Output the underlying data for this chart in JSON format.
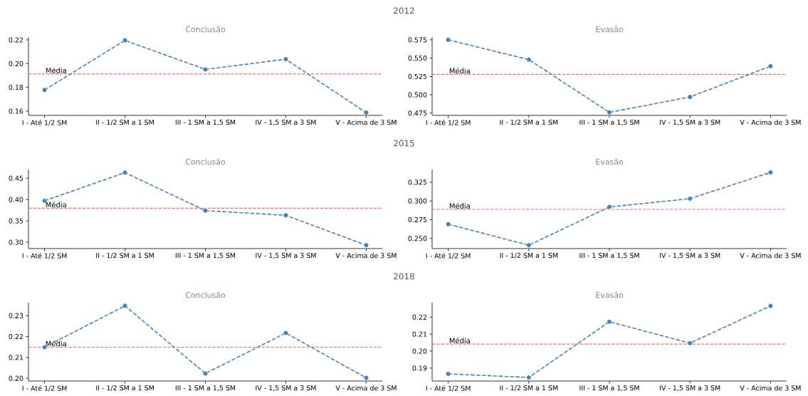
{
  "chart_data": [
    {
      "type": "line",
      "title": "2012",
      "subtitle": "Conclusão",
      "categories": [
        "I - Até 1/2 SM",
        "II - 1/2 SM a 1 SM",
        "III - 1 SM a 1,5 SM",
        "IV - 1,5 SM a 3 SM",
        "V - Acima de 3 SM"
      ],
      "series": [
        {
          "color": "#4682b4",
          "values": [
            0.1778,
            0.2196,
            0.1951,
            0.2037,
            0.1587
          ]
        }
      ],
      "ylim": [
        0.1564,
        0.2224
      ],
      "yticks": [
        {
          "value": 0.16,
          "label": "0.16"
        },
        {
          "value": 0.18,
          "label": "0.18"
        },
        {
          "value": 0.2,
          "label": "0.20"
        },
        {
          "value": 0.22,
          "label": "0.22"
        }
      ],
      "ref_lines": [
        {
          "axis": "y",
          "value": 0.1913,
          "label": "Média",
          "color": "#ff6666",
          "line_style": "dashed"
        }
      ],
      "marker": "circle",
      "line_style": "dashed"
    },
    {
      "type": "line",
      "subtitle": "Evasão",
      "categories": [
        "I - Até 1/2 SM",
        "II - 1/2 SM a 1 SM",
        "III - 1 SM a 1,5 SM",
        "IV - 1,5 SM a 3 SM",
        "V - Acima de 3 SM"
      ],
      "series": [
        {
          "color": "#4682b4",
          "values": [
            0.575,
            0.548,
            0.476,
            0.497,
            0.539
          ]
        }
      ],
      "ylim": [
        0.4719,
        0.5788
      ],
      "yticks": [
        {
          "value": 0.475,
          "label": "0.475"
        },
        {
          "value": 0.5,
          "label": "0.500"
        },
        {
          "value": 0.525,
          "label": "0.525"
        },
        {
          "value": 0.55,
          "label": "0.550"
        },
        {
          "value": 0.575,
          "label": "0.575"
        }
      ],
      "ref_lines": [
        {
          "axis": "y",
          "value": 0.5278,
          "label": "Média",
          "color": "#ff6666",
          "line_style": "dashed"
        }
      ],
      "marker": "circle",
      "line_style": "dashed"
    },
    {
      "type": "line",
      "title": "2015",
      "subtitle": "Conclusão",
      "categories": [
        "I - Até 1/2 SM",
        "II - 1/2 SM a 1 SM",
        "III - 1 SM a 1,5 SM",
        "IV - 1,5 SM a 3 SM",
        "V - Acima de 3 SM"
      ],
      "series": [
        {
          "color": "#4682b4",
          "values": [
            0.397,
            0.463,
            0.374,
            0.363,
            0.293
          ]
        }
      ],
      "ylim": [
        0.2851,
        0.4703
      ],
      "yticks": [
        {
          "value": 0.3,
          "label": "0.30"
        },
        {
          "value": 0.35,
          "label": "0.35"
        },
        {
          "value": 0.4,
          "label": "0.40"
        },
        {
          "value": 0.45,
          "label": "0.45"
        }
      ],
      "ref_lines": [
        {
          "axis": "y",
          "value": 0.3795,
          "label": "Média",
          "color": "#ff6666",
          "line_style": "dashed"
        }
      ],
      "marker": "circle",
      "line_style": "dashed"
    },
    {
      "type": "line",
      "subtitle": "Evasão",
      "categories": [
        "I - Até 1/2 SM",
        "II - 1/2 SM a 1 SM",
        "III - 1 SM a 1,5 SM",
        "IV - 1,5 SM a 3 SM",
        "V - Acima de 3 SM"
      ],
      "series": [
        {
          "color": "#4682b4",
          "values": [
            0.269,
            0.241,
            0.292,
            0.303,
            0.338
          ]
        }
      ],
      "ylim": [
        0.2365,
        0.3419
      ],
      "yticks": [
        {
          "value": 0.25,
          "label": "0.250"
        },
        {
          "value": 0.275,
          "label": "0.275"
        },
        {
          "value": 0.3,
          "label": "0.300"
        },
        {
          "value": 0.325,
          "label": "0.325"
        }
      ],
      "ref_lines": [
        {
          "axis": "y",
          "value": 0.2887,
          "label": "Média",
          "color": "#ff6666",
          "line_style": "dashed"
        }
      ],
      "marker": "circle",
      "line_style": "dashed"
    },
    {
      "type": "line",
      "title": "2018",
      "subtitle": "Conclusão",
      "categories": [
        "I - Até 1/2 SM",
        "II - 1/2 SM a 1 SM",
        "III - 1 SM a 1,5 SM",
        "IV - 1,5 SM a 3 SM",
        "V - Acima de 3 SM"
      ],
      "series": [
        {
          "color": "#4682b4",
          "values": [
            0.2149,
            0.2347,
            0.2023,
            0.2217,
            0.2002
          ]
        }
      ],
      "ylim": [
        0.1987,
        0.2362
      ],
      "yticks": [
        {
          "value": 0.2,
          "label": "0.20"
        },
        {
          "value": 0.21,
          "label": "0.21"
        },
        {
          "value": 0.22,
          "label": "0.22"
        },
        {
          "value": 0.23,
          "label": "0.23"
        }
      ],
      "ref_lines": [
        {
          "axis": "y",
          "value": 0.2149,
          "label": "Média",
          "color": "#ff6666",
          "line_style": "dashed"
        }
      ],
      "marker": "circle",
      "line_style": "dashed"
    },
    {
      "type": "line",
      "subtitle": "Evasão",
      "categories": [
        "I - Até 1/2 SM",
        "II - 1/2 SM a 1 SM",
        "III - 1 SM a 1,5 SM",
        "IV - 1,5 SM a 3 SM",
        "V - Acima de 3 SM"
      ],
      "series": [
        {
          "color": "#4682b4",
          "values": [
            0.1866,
            0.1845,
            0.2173,
            0.2047,
            0.2266
          ]
        }
      ],
      "ylim": [
        0.1824,
        0.2285
      ],
      "yticks": [
        {
          "value": 0.19,
          "label": "0.19"
        },
        {
          "value": 0.2,
          "label": "0.20"
        },
        {
          "value": 0.21,
          "label": "0.21"
        },
        {
          "value": 0.22,
          "label": "0.22"
        }
      ],
      "ref_lines": [
        {
          "axis": "y",
          "value": 0.2041,
          "label": "Média",
          "color": "#ff6666",
          "line_style": "dashed"
        }
      ],
      "marker": "circle",
      "line_style": "dashed"
    }
  ]
}
